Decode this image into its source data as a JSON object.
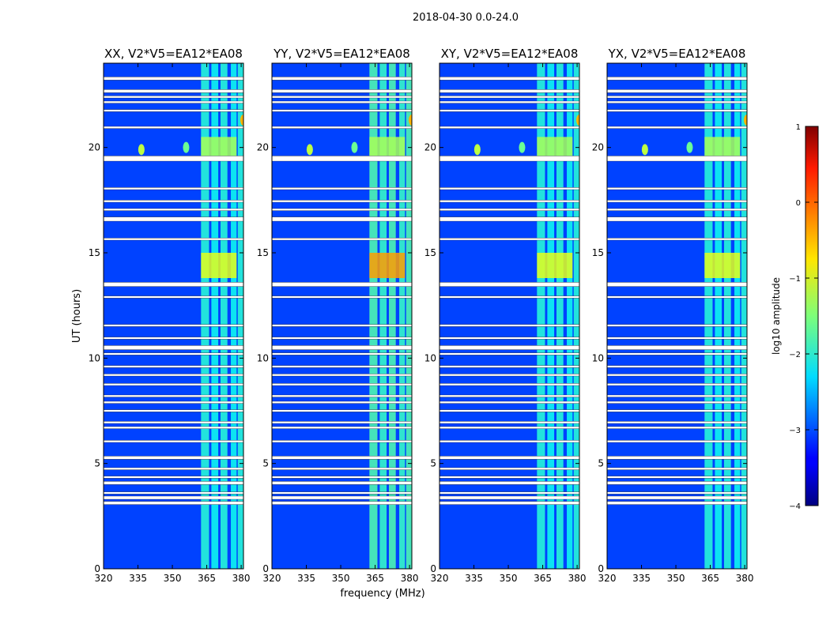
{
  "figure": {
    "title": "2018-04-30 0.0-24.0",
    "xlabel": "frequency (MHz)",
    "ylabel": "UT (hours)"
  },
  "chart_data": {
    "type": "heatmap",
    "xlim": [
      320,
      381
    ],
    "ylim": [
      0,
      24
    ],
    "xticks": [
      320,
      335,
      350,
      365,
      380
    ],
    "yticks": [
      0,
      5,
      10,
      15,
      20
    ],
    "panels": [
      {
        "title": "XX, V2*V5=EA12*EA08"
      },
      {
        "title": "YY, V2*V5=EA12*EA08"
      },
      {
        "title": "XY, V2*V5=EA12*EA08"
      },
      {
        "title": "YX, V2*V5=EA12*EA08"
      }
    ],
    "colorbar": {
      "label": "log10 amplitude",
      "range": [
        -4,
        1
      ],
      "ticks": [
        1,
        0,
        -1,
        -2,
        -3,
        -4
      ],
      "tick_labels": [
        "1",
        "0",
        "−1",
        "−2",
        "−3",
        "−4"
      ],
      "colormap": "jet"
    },
    "flagged_gaps_hours": [
      [
        23.2,
        23.35
      ],
      [
        22.6,
        22.75
      ],
      [
        22.35,
        22.45
      ],
      [
        22.1,
        22.2
      ],
      [
        21.7,
        21.8
      ],
      [
        20.9,
        21.0
      ],
      [
        19.35,
        19.6
      ],
      [
        18.0,
        18.1
      ],
      [
        17.4,
        17.5
      ],
      [
        17.0,
        17.1
      ],
      [
        16.5,
        16.7
      ],
      [
        15.6,
        15.7
      ],
      [
        13.4,
        13.6
      ],
      [
        12.85,
        12.95
      ],
      [
        11.5,
        11.6
      ],
      [
        10.9,
        11.0
      ],
      [
        10.4,
        10.6
      ],
      [
        10.15,
        10.25
      ],
      [
        9.55,
        9.65
      ],
      [
        9.15,
        9.25
      ],
      [
        8.7,
        8.8
      ],
      [
        8.15,
        8.25
      ],
      [
        7.85,
        7.95
      ],
      [
        7.45,
        7.55
      ],
      [
        6.9,
        7.0
      ],
      [
        6.65,
        6.75
      ],
      [
        6.0,
        6.1
      ],
      [
        5.2,
        5.35
      ],
      [
        4.7,
        4.8
      ],
      [
        4.3,
        4.4
      ],
      [
        4.0,
        4.15
      ],
      [
        3.55,
        3.65
      ],
      [
        3.3,
        3.45
      ],
      [
        3.05,
        3.2
      ]
    ],
    "rfi_bands_mhz": [
      [
        362.5,
        366.0
      ],
      [
        367.0,
        370.0
      ],
      [
        371.0,
        374.0
      ],
      [
        375.5,
        378.0
      ],
      [
        378.5,
        381.0
      ]
    ],
    "features": [
      {
        "freq_mhz": 336.5,
        "ut_hours": 19.9,
        "log_amp": -1.2,
        "type": "spot"
      },
      {
        "freq_mhz": 356.0,
        "ut_hours": 20.0,
        "log_amp": -1.6,
        "type": "spot"
      },
      {
        "freq_mhz": 381.0,
        "ut_hours": 21.3,
        "log_amp": -0.5,
        "type": "spot"
      },
      {
        "band_mhz": [
          362.5,
          378.0
        ],
        "ut_hours": [
          13.8,
          15.0
        ],
        "log_amp": -1.0,
        "type": "block"
      },
      {
        "band_mhz": [
          362.5,
          378.0
        ],
        "ut_hours": [
          19.5,
          20.5
        ],
        "log_amp": -1.3,
        "type": "block"
      }
    ]
  }
}
